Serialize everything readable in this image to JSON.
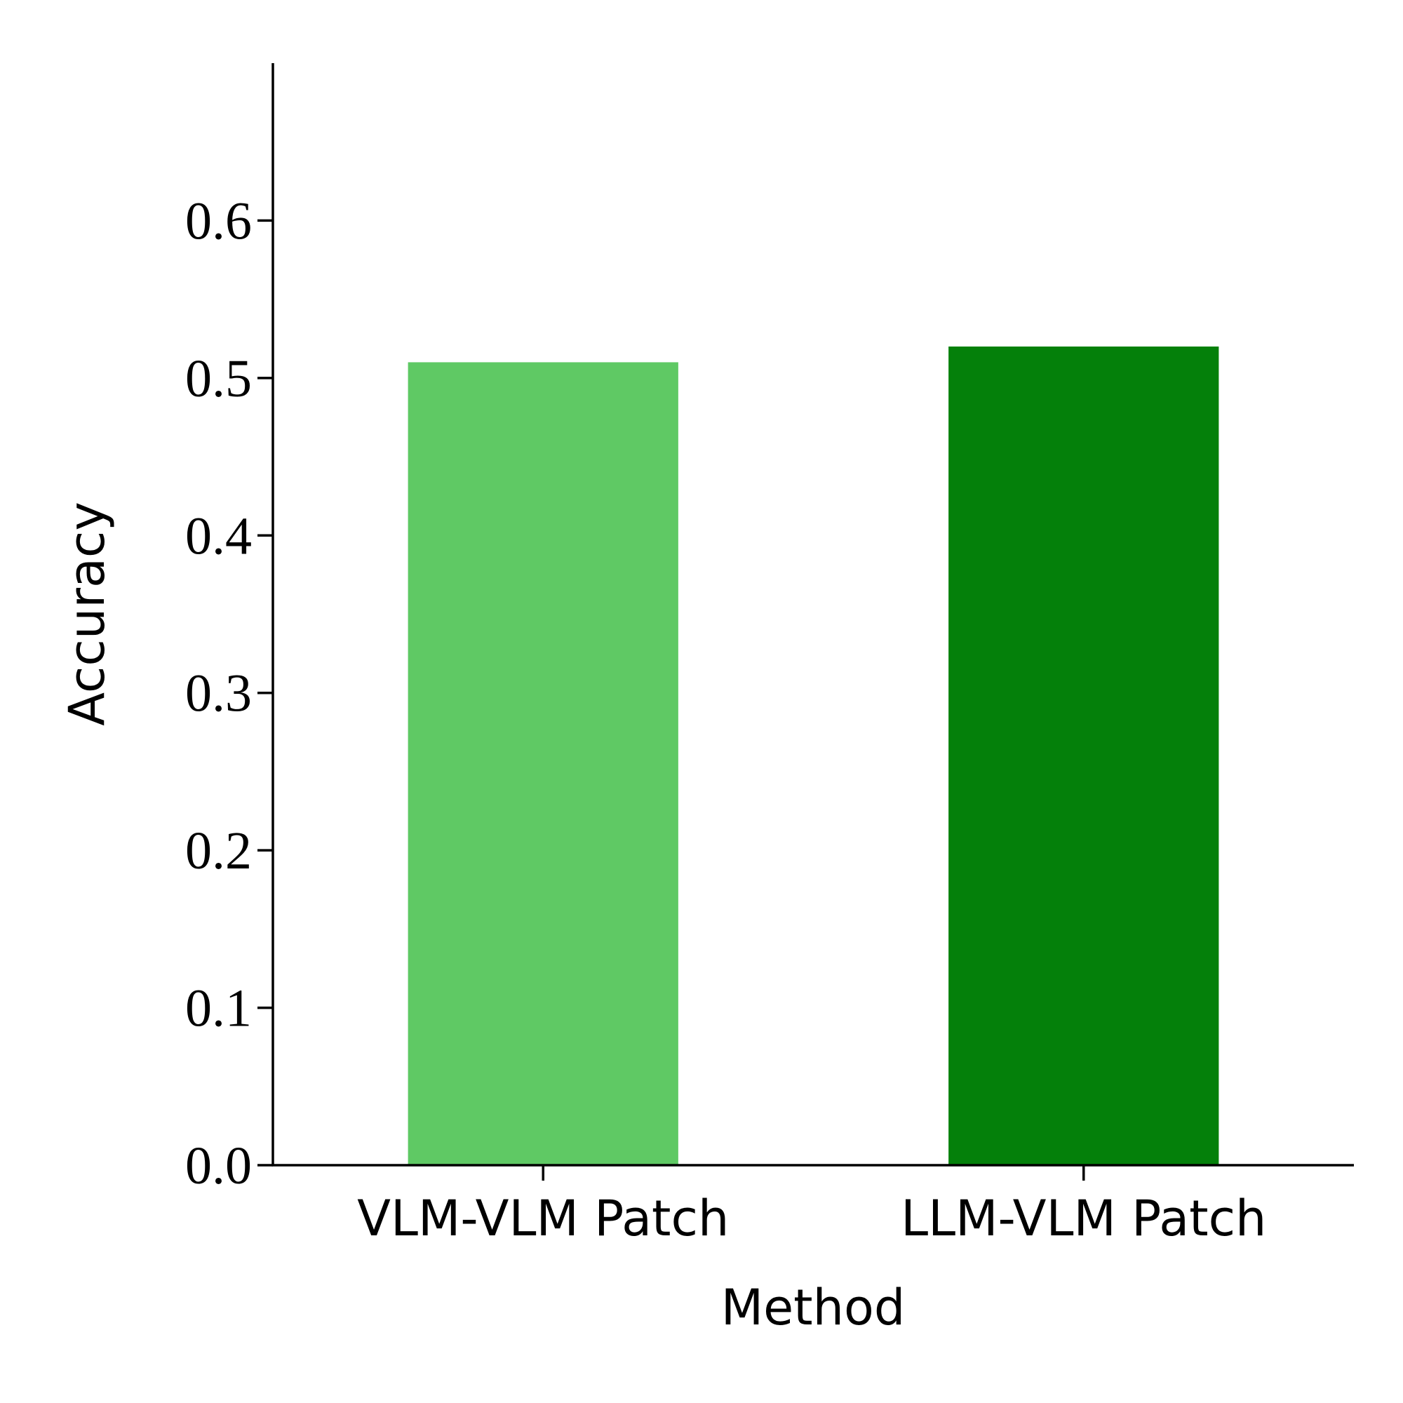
{
  "chart_data": {
    "type": "bar",
    "x_label": "Method",
    "y_label": "Accuracy",
    "categories": [
      "VLM-VLM Patch",
      "LLM-VLM Patch"
    ],
    "values": [
      0.51,
      0.52
    ],
    "colors": [
      "#5fc964",
      "#04800a"
    ],
    "ylim": [
      0,
      0.7
    ],
    "yticks": [
      {
        "value": 0,
        "label": "0.0"
      },
      0.1,
      0.2,
      0.3,
      0.4,
      0.5,
      0.6
    ],
    "grid": false
  }
}
